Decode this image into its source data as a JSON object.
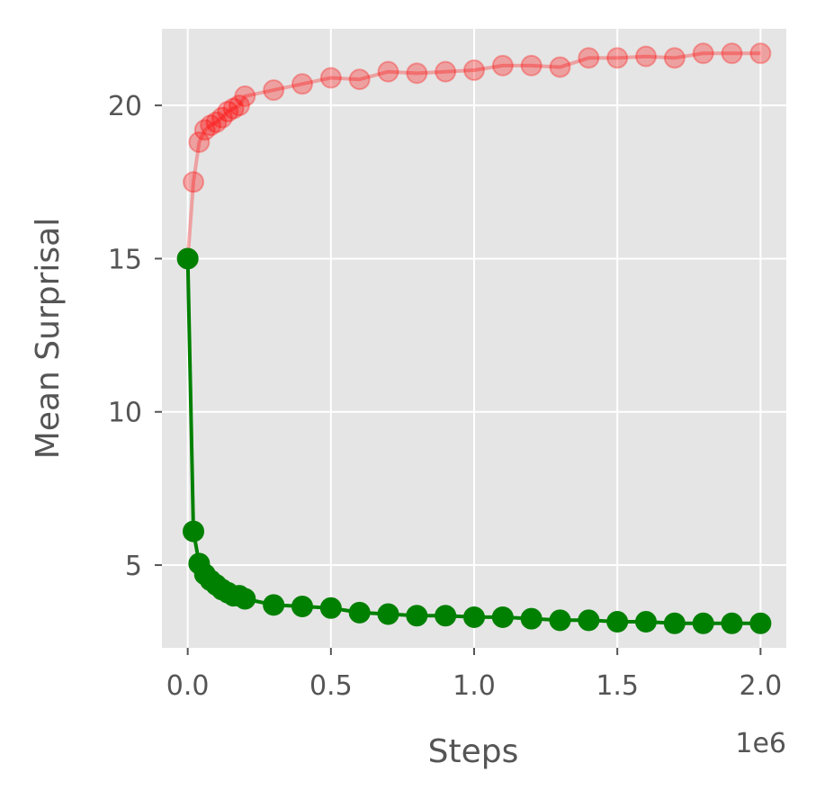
{
  "chart_data": {
    "type": "line",
    "title": "",
    "xlabel": "Steps",
    "ylabel": "Mean Surprisal",
    "x_offset_label": "1e6",
    "xlim": [
      -0.09,
      2.09
    ],
    "ylim": [
      2.3,
      22.5
    ],
    "x_ticks": [
      0.0,
      0.5,
      1.0,
      1.5,
      2.0
    ],
    "x_tick_labels": [
      "0.0",
      "0.5",
      "1.0",
      "1.5",
      "2.0"
    ],
    "y_ticks": [
      5,
      10,
      15,
      20
    ],
    "y_tick_labels": [
      "5",
      "10",
      "15",
      "20"
    ],
    "grid": true,
    "series": [
      {
        "name": "red",
        "color": "#ff0000",
        "alpha": 0.3,
        "x": [
          0.0,
          0.02,
          0.04,
          0.06,
          0.08,
          0.1,
          0.12,
          0.14,
          0.16,
          0.18,
          0.2,
          0.3,
          0.4,
          0.5,
          0.6,
          0.7,
          0.8,
          0.9,
          1.0,
          1.1,
          1.2,
          1.3,
          1.4,
          1.5,
          1.6,
          1.7,
          1.8,
          1.9,
          2.0
        ],
        "values": [
          15.0,
          17.5,
          18.8,
          19.2,
          19.35,
          19.45,
          19.6,
          19.8,
          19.9,
          20.0,
          20.3,
          20.5,
          20.7,
          20.9,
          20.85,
          21.1,
          21.05,
          21.1,
          21.15,
          21.3,
          21.3,
          21.25,
          21.55,
          21.55,
          21.6,
          21.55,
          21.7,
          21.7,
          21.7
        ]
      },
      {
        "name": "green",
        "color": "#008000",
        "alpha": 1.0,
        "x": [
          0.0,
          0.02,
          0.04,
          0.06,
          0.08,
          0.1,
          0.12,
          0.14,
          0.16,
          0.18,
          0.2,
          0.3,
          0.4,
          0.5,
          0.6,
          0.7,
          0.8,
          0.9,
          1.0,
          1.1,
          1.2,
          1.3,
          1.4,
          1.5,
          1.6,
          1.7,
          1.8,
          1.9,
          2.0
        ],
        "values": [
          15.0,
          6.1,
          5.05,
          4.7,
          4.5,
          4.35,
          4.2,
          4.1,
          4.0,
          4.0,
          3.9,
          3.7,
          3.65,
          3.6,
          3.45,
          3.4,
          3.35,
          3.35,
          3.3,
          3.3,
          3.25,
          3.2,
          3.2,
          3.15,
          3.15,
          3.1,
          3.1,
          3.1,
          3.1
        ]
      }
    ]
  },
  "colors": {
    "plot_background": "#e5e5e5",
    "grid": "#ffffff",
    "text": "#555555"
  }
}
